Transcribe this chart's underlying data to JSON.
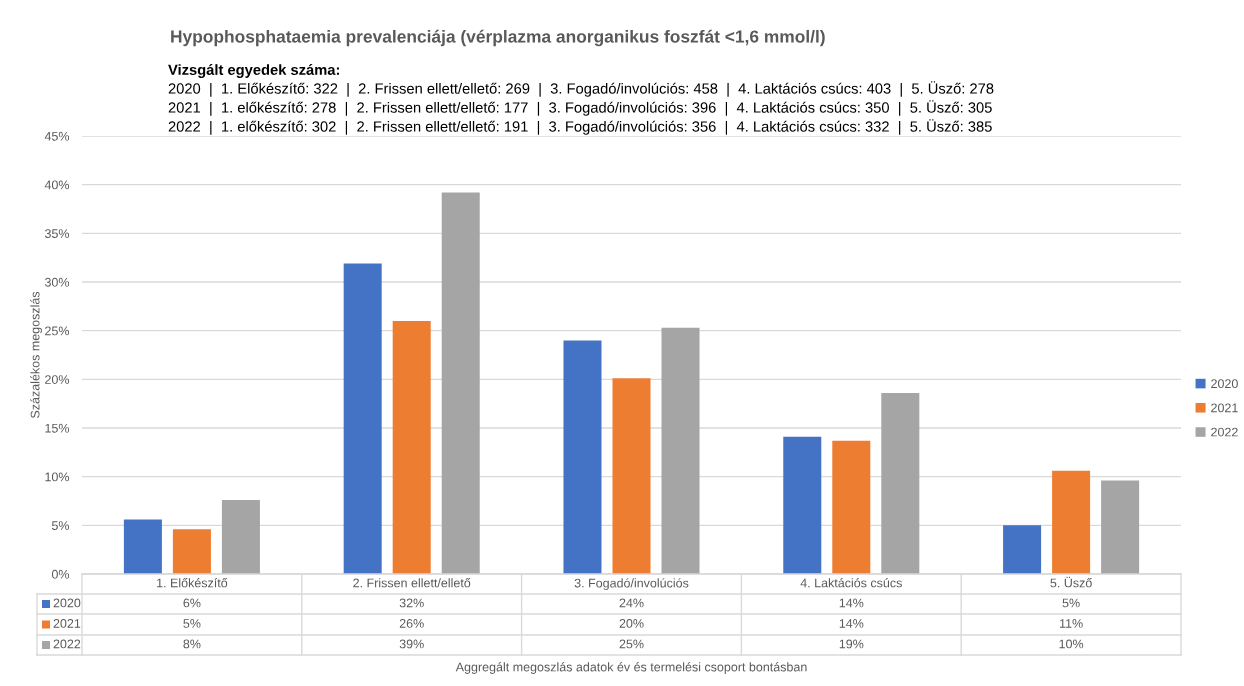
{
  "chart_data": {
    "type": "bar",
    "title": "Hypophosphataemia prevalenciája (vérplazma anorganikus foszfát <1,6 mmol/l)",
    "annotations": [
      "Vizsgált egyedek száma:",
      "2020  |  1. Előkészítő: 322  |  2. Frissen ellett/ellető: 269  |  3. Fogadó/involúciós: 458  |  4. Laktációs csúcs: 403  |  5. Üsző: 278",
      "2021  |  1. előkészítő: 278  |  2. Frissen ellett/ellető: 177  |  3. Fogadó/involúciós: 396  |  4. Laktációs csúcs: 350  |  5. Üsző: 305",
      "2022  |  1. előkészítő: 302  |  2. Frissen ellett/ellető: 191  |  3. Fogadó/involúciós: 356  |  4. Laktációs csúcs: 332  |  5. Üsző: 385",
      "Aggregált megoszlás adatok év és termelési csoport bontásban"
    ],
    "ylabel": "Százalékos megoszlás",
    "categories": [
      "1. Előkészítő",
      "2. Frissen ellett/ellető",
      "3. Fogadó/involúciós",
      "4. Laktációs csúcs",
      "5. Üsző"
    ],
    "series": [
      {
        "name": "2020",
        "color": "#4472c4",
        "values": [
          5.6,
          31.9,
          24.0,
          14.1,
          5.0
        ],
        "value_labels": [
          "6%",
          "32%",
          "24%",
          "14%",
          "5%"
        ]
      },
      {
        "name": "2021",
        "color": "#ed7d31",
        "values": [
          4.6,
          26.0,
          20.1,
          13.7,
          10.6
        ],
        "value_labels": [
          "5%",
          "26%",
          "20%",
          "14%",
          "11%"
        ]
      },
      {
        "name": "2022",
        "color": "#a5a5a5",
        "values": [
          7.6,
          39.2,
          25.3,
          18.6,
          9.6
        ],
        "value_labels": [
          "8%",
          "39%",
          "25%",
          "19%",
          "10%"
        ]
      }
    ],
    "ylim": [
      0,
      45
    ],
    "yticks": [
      {
        "value": 0,
        "label": "0%"
      },
      {
        "value": 5,
        "label": "5%"
      },
      {
        "value": 10,
        "label": "10%"
      },
      {
        "value": 15,
        "label": "15%"
      },
      {
        "value": 20,
        "label": "20%"
      },
      {
        "value": 25,
        "label": "25%"
      },
      {
        "value": 30,
        "label": "30%"
      },
      {
        "value": 35,
        "label": "35%"
      },
      {
        "value": 40,
        "label": "40%"
      },
      {
        "value": 45,
        "label": "45%"
      }
    ],
    "grid": "y",
    "legend": "right"
  }
}
